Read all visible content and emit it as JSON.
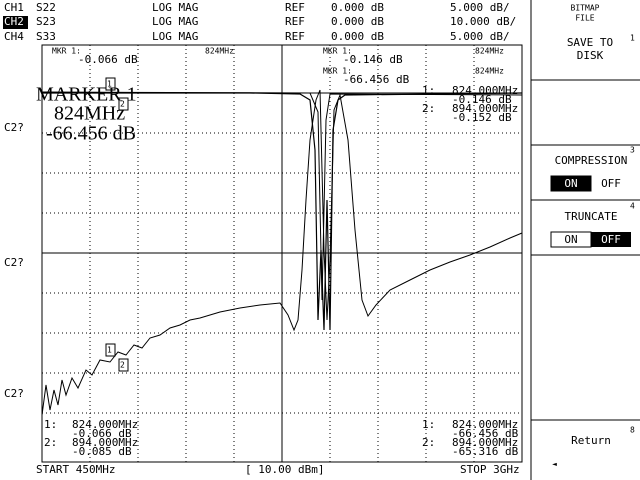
{
  "header": {
    "rows": [
      {
        "channel": "CH1",
        "param": "S22",
        "format": "LOG MAG",
        "ref_label": "REF",
        "ref": "0.000 dB",
        "scale": "5.000 dB/"
      },
      {
        "channel": "CH2",
        "param": "S23",
        "format": "LOG MAG",
        "ref_label": "REF",
        "ref": "0.000 dB",
        "scale": "10.000 dB/"
      },
      {
        "channel": "CH4",
        "param": "S33",
        "format": "LOG MAG",
        "ref_label": "REF",
        "ref": "0.000 dB",
        "scale": "5.000 dB/"
      }
    ]
  },
  "plot": {
    "left_labels": [
      "C2?",
      "C2?",
      "C2?"
    ],
    "mkr_left": {
      "label": "MKR 1:",
      "freq": "824MHz",
      "value": "-0.066 dB"
    },
    "mkr_right": [
      {
        "label": "MKR 1:",
        "freq": "824MHz",
        "value": "-0.146 dB"
      },
      {
        "label": "MKR 1:",
        "freq": "824MHz",
        "value": "-66.456 dB"
      }
    ],
    "big_marker": {
      "title": "MARKER 1",
      "freq": "824MHz",
      "value": "-66.456 dB"
    },
    "marker_tags": [
      "1",
      "2",
      "1",
      "2"
    ],
    "list_top_right": [
      {
        "n": "1:",
        "freq": "824.000MHz",
        "value": "-0.146 dB"
      },
      {
        "n": "2:",
        "freq": "894.000MHz",
        "value": "-0.152 dB"
      }
    ],
    "list_bottom_left": [
      {
        "n": "1:",
        "freq": "824.000MHz",
        "value": "-0.066 dB"
      },
      {
        "n": "2:",
        "freq": "894.000MHz",
        "value": "-0.085 dB"
      }
    ],
    "list_bottom_right": [
      {
        "n": "1:",
        "freq": "824.000MHz",
        "value": "-66.456 dB"
      },
      {
        "n": "2:",
        "freq": "894.000MHz",
        "value": "-65.316 dB"
      }
    ]
  },
  "footer": {
    "start": "START 450MHz",
    "power": "[ 10.00 dBm]",
    "stop": "STOP 3GHz"
  },
  "softkeys": {
    "title_1": "BITMAP",
    "title_2": "FILE",
    "save_1": "SAVE TO",
    "save_2": "DISK",
    "save_num": "1",
    "compression": "COMPRESSION",
    "compression_num": "3",
    "compression_on": "ON",
    "compression_off": "OFF",
    "truncate": "TRUNCATE",
    "truncate_num": "4",
    "truncate_on": "ON",
    "truncate_off": "OFF",
    "return": "Return",
    "return_num": "8",
    "arrow": "◄"
  }
}
